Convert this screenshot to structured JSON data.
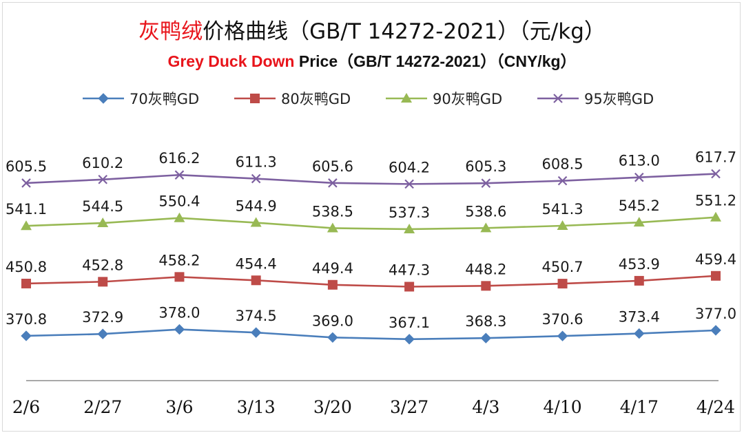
{
  "title": {
    "cn_highlight": "灰鸭绒",
    "cn_rest": "价格曲线（GB/T 14272-2021）（元/kg）",
    "en_highlight": "Grey Duck Down",
    "en_rest": " Price（GB/T 14272-2021）（CNY/kg）"
  },
  "chart_data": {
    "type": "line",
    "title": "灰鸭绒价格曲线（GB/T 14272-2021）（元/kg） Grey Duck Down Price（GB/T 14272-2021）（CNY/kg）",
    "xlabel": "",
    "ylabel": "",
    "categories": [
      "2/6",
      "2/27",
      "3/6",
      "3/13",
      "3/20",
      "3/27",
      "4/3",
      "4/10",
      "4/17",
      "4/24"
    ],
    "legend_position": "top",
    "grid": false,
    "series": [
      {
        "name": "70灰鸭GD",
        "color": "#4a7ebb",
        "marker": "diamond",
        "values": [
          370.8,
          372.9,
          378.0,
          374.5,
          369.0,
          367.1,
          368.3,
          370.6,
          373.4,
          377.0
        ],
        "labels": [
          "370.8",
          "372.9",
          "378.0",
          "374.5",
          "369.0",
          "367.1",
          "368.3",
          "370.6",
          "373.4",
          "377.0"
        ]
      },
      {
        "name": "80灰鸭GD",
        "color": "#be4b48",
        "marker": "square",
        "values": [
          450.8,
          452.8,
          458.2,
          454.4,
          449.4,
          447.3,
          448.2,
          450.7,
          453.9,
          459.4
        ],
        "labels": [
          "450.8",
          "452.8",
          "458.2",
          "454.4",
          "449.4",
          "447.3",
          "448.2",
          "450.7",
          "453.9",
          "459.4"
        ]
      },
      {
        "name": "90灰鸭GD",
        "color": "#98b954",
        "marker": "triangle",
        "values": [
          541.1,
          544.5,
          550.4,
          544.9,
          538.5,
          537.3,
          538.6,
          541.3,
          545.2,
          551.2
        ],
        "labels": [
          "541.1",
          "544.5",
          "550.4",
          "544.9",
          "538.5",
          "537.3",
          "538.6",
          "541.3",
          "545.2",
          "551.2"
        ]
      },
      {
        "name": "95灰鸭GD",
        "color": "#7d60a0",
        "marker": "x",
        "values": [
          605.5,
          610.2,
          616.2,
          611.3,
          605.6,
          604.2,
          605.3,
          608.5,
          613.0,
          617.7
        ],
        "labels": [
          "605.5",
          "610.2",
          "616.2",
          "611.3",
          "605.6",
          "604.2",
          "605.3",
          "608.5",
          "613.0",
          "617.7"
        ]
      }
    ]
  }
}
